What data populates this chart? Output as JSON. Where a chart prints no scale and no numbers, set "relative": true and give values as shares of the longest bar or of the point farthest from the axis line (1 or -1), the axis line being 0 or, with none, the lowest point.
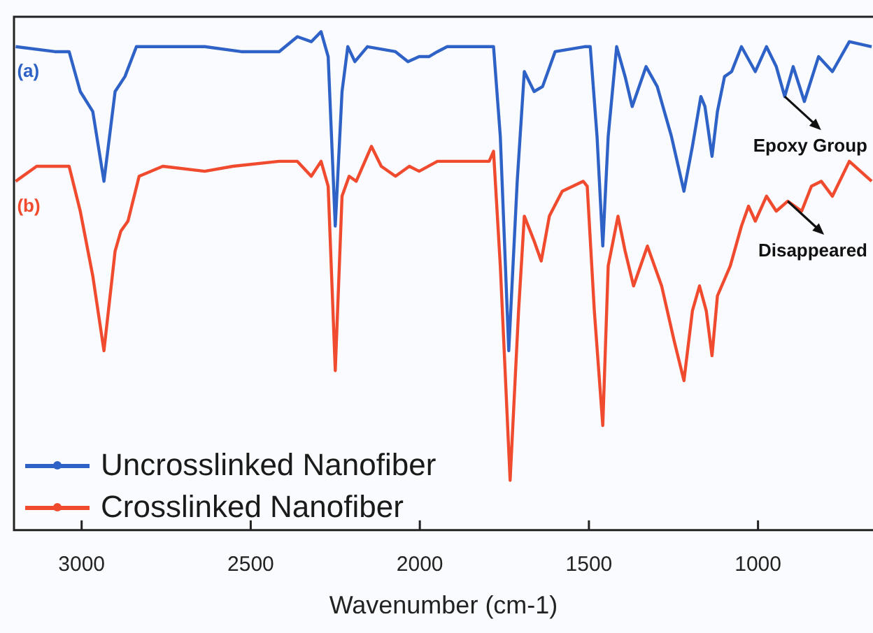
{
  "chart_data": {
    "type": "line",
    "relative": true,
    "xlabel": "Wavenumber (cm-1)",
    "xlim": [
      3200,
      660
    ],
    "xticks": [
      3000,
      2500,
      2000,
      1500,
      1000
    ],
    "legend": "bottom left",
    "grid": false,
    "marker": "none",
    "line_style": "solid",
    "annotations": [
      {
        "text": "(a)",
        "x": 3195,
        "y": 0.97
      },
      {
        "text": "(b)",
        "x": 3195,
        "y": 0.7
      },
      {
        "text": "Epoxy Group",
        "x": 921,
        "y": 0.87
      },
      {
        "text": "Disappeared",
        "x": 912,
        "y": 0.66
      }
    ],
    "series": [
      {
        "name": "Uncrosslinked Nanofiber",
        "color": "#2f62c6",
        "x": [
          3195,
          3079,
          3037,
          3004,
          2967,
          2934,
          2901,
          2872,
          2838,
          2636,
          2528,
          2416,
          2362,
          2321,
          2292,
          2271,
          2250,
          2230,
          2213,
          2192,
          2155,
          2072,
          2035,
          2002,
          1973,
          1948,
          1919,
          1795,
          1782,
          1762,
          1737,
          1712,
          1691,
          1662,
          1637,
          1600,
          1513,
          1496,
          1476,
          1459,
          1443,
          1418,
          1393,
          1372,
          1331,
          1298,
          1256,
          1219,
          1194,
          1169,
          1157,
          1136,
          1120,
          1099,
          1078,
          1049,
          1008,
          975,
          946,
          921,
          896,
          863,
          821,
          780,
          730,
          664
        ],
        "values": [
          0.97,
          0.96,
          0.96,
          0.88,
          0.84,
          0.7,
          0.88,
          0.91,
          0.97,
          0.97,
          0.96,
          0.96,
          0.99,
          0.98,
          1.0,
          0.95,
          0.61,
          0.88,
          0.97,
          0.94,
          0.97,
          0.96,
          0.94,
          0.95,
          0.95,
          0.96,
          0.97,
          0.97,
          0.97,
          0.79,
          0.36,
          0.7,
          0.92,
          0.88,
          0.89,
          0.96,
          0.97,
          0.97,
          0.79,
          0.57,
          0.79,
          0.97,
          0.91,
          0.85,
          0.93,
          0.89,
          0.79,
          0.68,
          0.77,
          0.87,
          0.85,
          0.75,
          0.84,
          0.91,
          0.92,
          0.97,
          0.92,
          0.97,
          0.93,
          0.87,
          0.93,
          0.86,
          0.95,
          0.92,
          0.98,
          0.97
        ]
      },
      {
        "name": "Crosslinked Nanofiber",
        "color": "#f04a2f",
        "x": [
          3195,
          3133,
          3037,
          3004,
          2967,
          2934,
          2901,
          2884,
          2863,
          2830,
          2760,
          2636,
          2553,
          2416,
          2362,
          2321,
          2292,
          2271,
          2250,
          2230,
          2209,
          2188,
          2143,
          2114,
          2072,
          2031,
          2002,
          1948,
          1795,
          1782,
          1762,
          1733,
          1708,
          1691,
          1662,
          1641,
          1617,
          1579,
          1517,
          1505,
          1484,
          1459,
          1443,
          1414,
          1393,
          1368,
          1327,
          1285,
          1248,
          1219,
          1194,
          1173,
          1153,
          1136,
          1120,
          1082,
          1049,
          1028,
          1008,
          975,
          946,
          912,
          871,
          842,
          813,
          780,
          730,
          664
        ],
        "values": [
          0.7,
          0.73,
          0.73,
          0.64,
          0.51,
          0.36,
          0.56,
          0.6,
          0.62,
          0.71,
          0.73,
          0.72,
          0.73,
          0.74,
          0.74,
          0.71,
          0.74,
          0.69,
          0.32,
          0.67,
          0.71,
          0.7,
          0.77,
          0.73,
          0.71,
          0.73,
          0.72,
          0.74,
          0.74,
          0.76,
          0.53,
          0.1,
          0.44,
          0.63,
          0.58,
          0.54,
          0.63,
          0.68,
          0.7,
          0.69,
          0.44,
          0.21,
          0.53,
          0.63,
          0.56,
          0.49,
          0.57,
          0.49,
          0.38,
          0.3,
          0.44,
          0.49,
          0.44,
          0.35,
          0.47,
          0.53,
          0.61,
          0.65,
          0.62,
          0.67,
          0.64,
          0.66,
          0.64,
          0.69,
          0.7,
          0.67,
          0.74,
          0.7
        ]
      }
    ]
  }
}
